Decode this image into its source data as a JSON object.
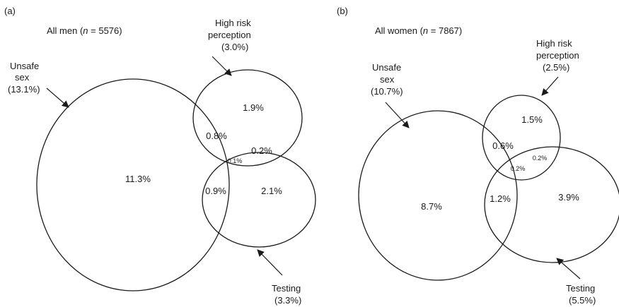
{
  "panels": [
    {
      "tag": "(a)",
      "title_prefix": "All men (",
      "title_n": "n",
      "title_suffix": " = 5576)",
      "labels": {
        "unsafe_line1": "Unsafe",
        "unsafe_line2": "sex",
        "unsafe_pct": "(13.1%)",
        "risk_line1": "High risk",
        "risk_line2": "perception",
        "risk_pct": "(3.0%)",
        "testing_line1": "Testing",
        "testing_pct": "(3.3%)"
      },
      "regions": {
        "unsafe_only": "11.3%",
        "risk_only": "1.9%",
        "unsafe_risk": "0.8%",
        "risk_testing": "0.2%",
        "all_three": "0.1%",
        "unsafe_testing": "0.9%",
        "testing_only": "2.1%"
      }
    },
    {
      "tag": "(b)",
      "title_prefix": "All women (",
      "title_n": "n",
      "title_suffix": " = 7867)",
      "labels": {
        "unsafe_line1": "Unsafe",
        "unsafe_line2": "sex",
        "unsafe_pct": "(10.7%)",
        "risk_line1": "High risk",
        "risk_line2": "perception",
        "risk_pct": "(2.5%)",
        "testing_line1": "Testing",
        "testing_pct": "(5.5%)"
      },
      "regions": {
        "unsafe_only": "8.7%",
        "risk_only": "1.5%",
        "unsafe_risk": "0.6%",
        "risk_testing": "0.2%",
        "all_three": "0.2%",
        "unsafe_testing": "1.2%",
        "testing_only": "3.9%"
      }
    }
  ]
}
